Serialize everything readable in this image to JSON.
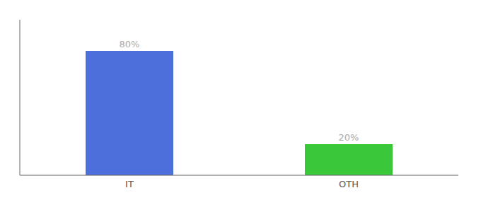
{
  "chart_data": {
    "type": "bar",
    "categories": [
      "IT",
      "OTH"
    ],
    "values": [
      80,
      20
    ],
    "value_labels": [
      "80%",
      "20%"
    ],
    "colors": [
      "#4d6fdb",
      "#3ac83a"
    ],
    "ylim": [
      0,
      100
    ],
    "yticks": [],
    "data_labels": true,
    "tick_labels": "x",
    "grid": false
  }
}
